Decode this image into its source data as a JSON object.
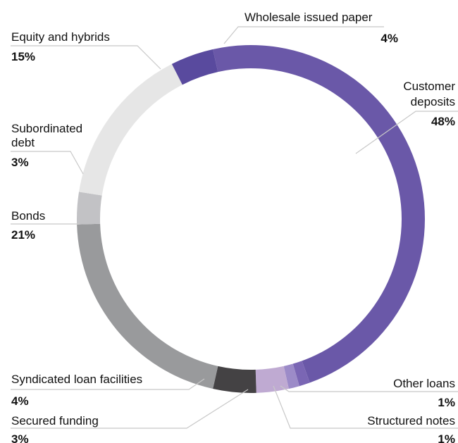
{
  "chart_data": {
    "type": "pie",
    "title": "",
    "segments": [
      {
        "name": "Customer deposits",
        "value": 48,
        "label": "48%",
        "color": "#6a58a8"
      },
      {
        "name": "Other loans",
        "value": 1,
        "label": "1%",
        "color": "#7a66b4"
      },
      {
        "name": "Structured notes",
        "value": 1,
        "label": "1%",
        "color": "#9c8bc8"
      },
      {
        "name": "Secured funding",
        "value": 3,
        "label": "3%",
        "color": "#bfaad2"
      },
      {
        "name": "Syndicated loan facilities",
        "value": 4,
        "label": "4%",
        "color": "#444244"
      },
      {
        "name": "Bonds",
        "value": 21,
        "label": "21%",
        "color": "#999a9c"
      },
      {
        "name": "Subordinated debt",
        "value": 3,
        "label": "3%",
        "color": "#c2c2c5"
      },
      {
        "name": "Equity and hybrids",
        "value": 15,
        "label": "15%",
        "color": "#e6e6e6"
      },
      {
        "name": "Wholesale issued paper",
        "value": 4,
        "label": "4%",
        "color": "#594a9e"
      }
    ]
  }
}
